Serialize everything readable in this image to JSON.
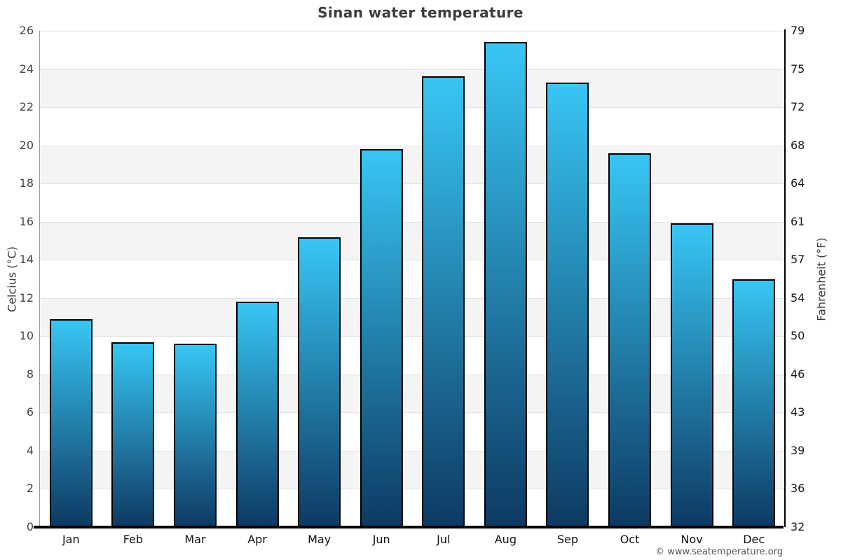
{
  "title": "Sinan water temperature",
  "footer": "© www.seatemperature.org",
  "chart_data": {
    "type": "bar",
    "title": "Sinan water temperature",
    "categories": [
      "Jan",
      "Feb",
      "Mar",
      "Apr",
      "May",
      "Jun",
      "Jul",
      "Aug",
      "Sep",
      "Oct",
      "Nov",
      "Dec"
    ],
    "values": [
      10.9,
      9.7,
      9.6,
      11.8,
      15.2,
      19.8,
      23.6,
      25.4,
      23.3,
      19.6,
      15.9,
      13.0
    ],
    "series_name": "Water temperature",
    "ylabel": "Celcius (°C)",
    "ylabel_right": "Fahrenheit (°F)",
    "xlabel": "",
    "ylim": [
      0,
      26
    ],
    "yticks_celsius": [
      0,
      2,
      4,
      6,
      8,
      10,
      12,
      14,
      16,
      18,
      20,
      22,
      24,
      26
    ],
    "yticks_fahrenheit": [
      "32",
      "36",
      "39",
      "43",
      "46",
      "50",
      "54",
      "57",
      "61",
      "64",
      "68",
      "72",
      "75",
      "79"
    ],
    "grid": "horizontal bands, alternating shading every 2°C",
    "legend_position": "none",
    "colors": {
      "bar_gradient_top": "#38c6f4",
      "bar_gradient_bottom": "#0d3a63",
      "bar_border": "#000000",
      "band_light": "#ffffff",
      "band_shaded": "#f4f4f4",
      "gridline": "#e2e2e2",
      "title_text": "#3d3d3d",
      "footer_text": "#555555"
    }
  }
}
